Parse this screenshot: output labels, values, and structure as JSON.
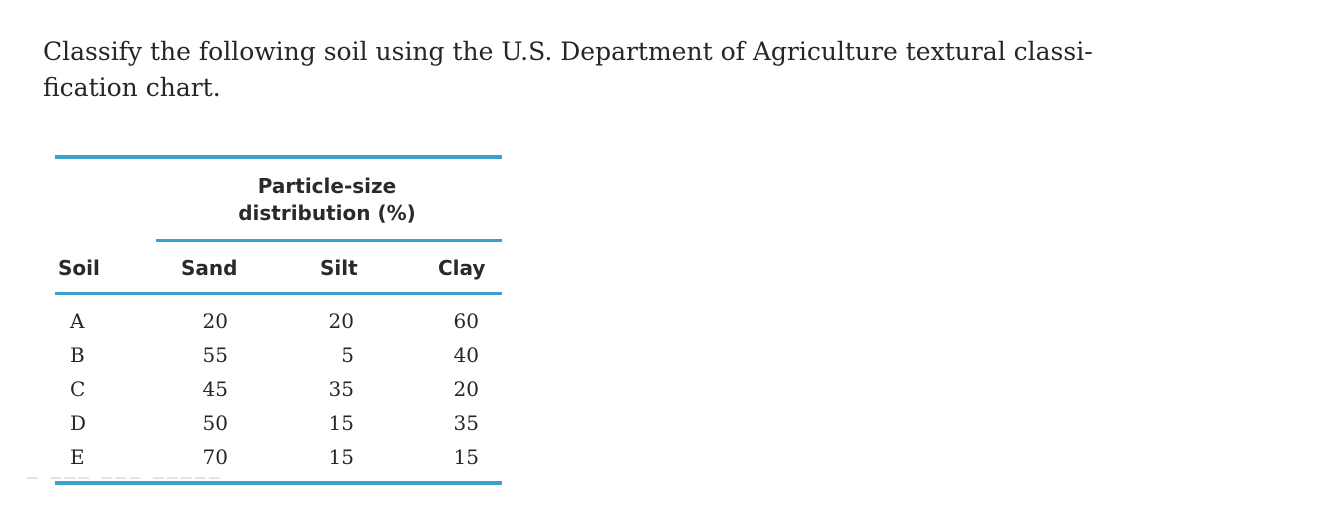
{
  "question": "Classify the following soil using the U.S. Department of Agriculture textural classification chart.",
  "question_lines": [
    "Classify the following soil using the U.S. Department of Agriculture textural classi-",
    "fication chart."
  ],
  "table": {
    "group_header_lines": [
      "Particle-size",
      "distribution (%)"
    ],
    "columns": [
      "Soil",
      "Sand",
      "Silt",
      "Clay"
    ],
    "rows": [
      {
        "soil": "A",
        "sand": "20",
        "silt": "20",
        "clay": "60"
      },
      {
        "soil": "B",
        "sand": "55",
        "silt": "5",
        "clay": "40"
      },
      {
        "soil": "C",
        "sand": "45",
        "silt": "35",
        "clay": "20"
      },
      {
        "soil": "D",
        "sand": "50",
        "silt": "15",
        "clay": "35"
      },
      {
        "soil": "E",
        "sand": "70",
        "silt": "15",
        "clay": "15"
      }
    ]
  },
  "colors": {
    "rule": "#3aa1cf",
    "text": "#262626"
  }
}
